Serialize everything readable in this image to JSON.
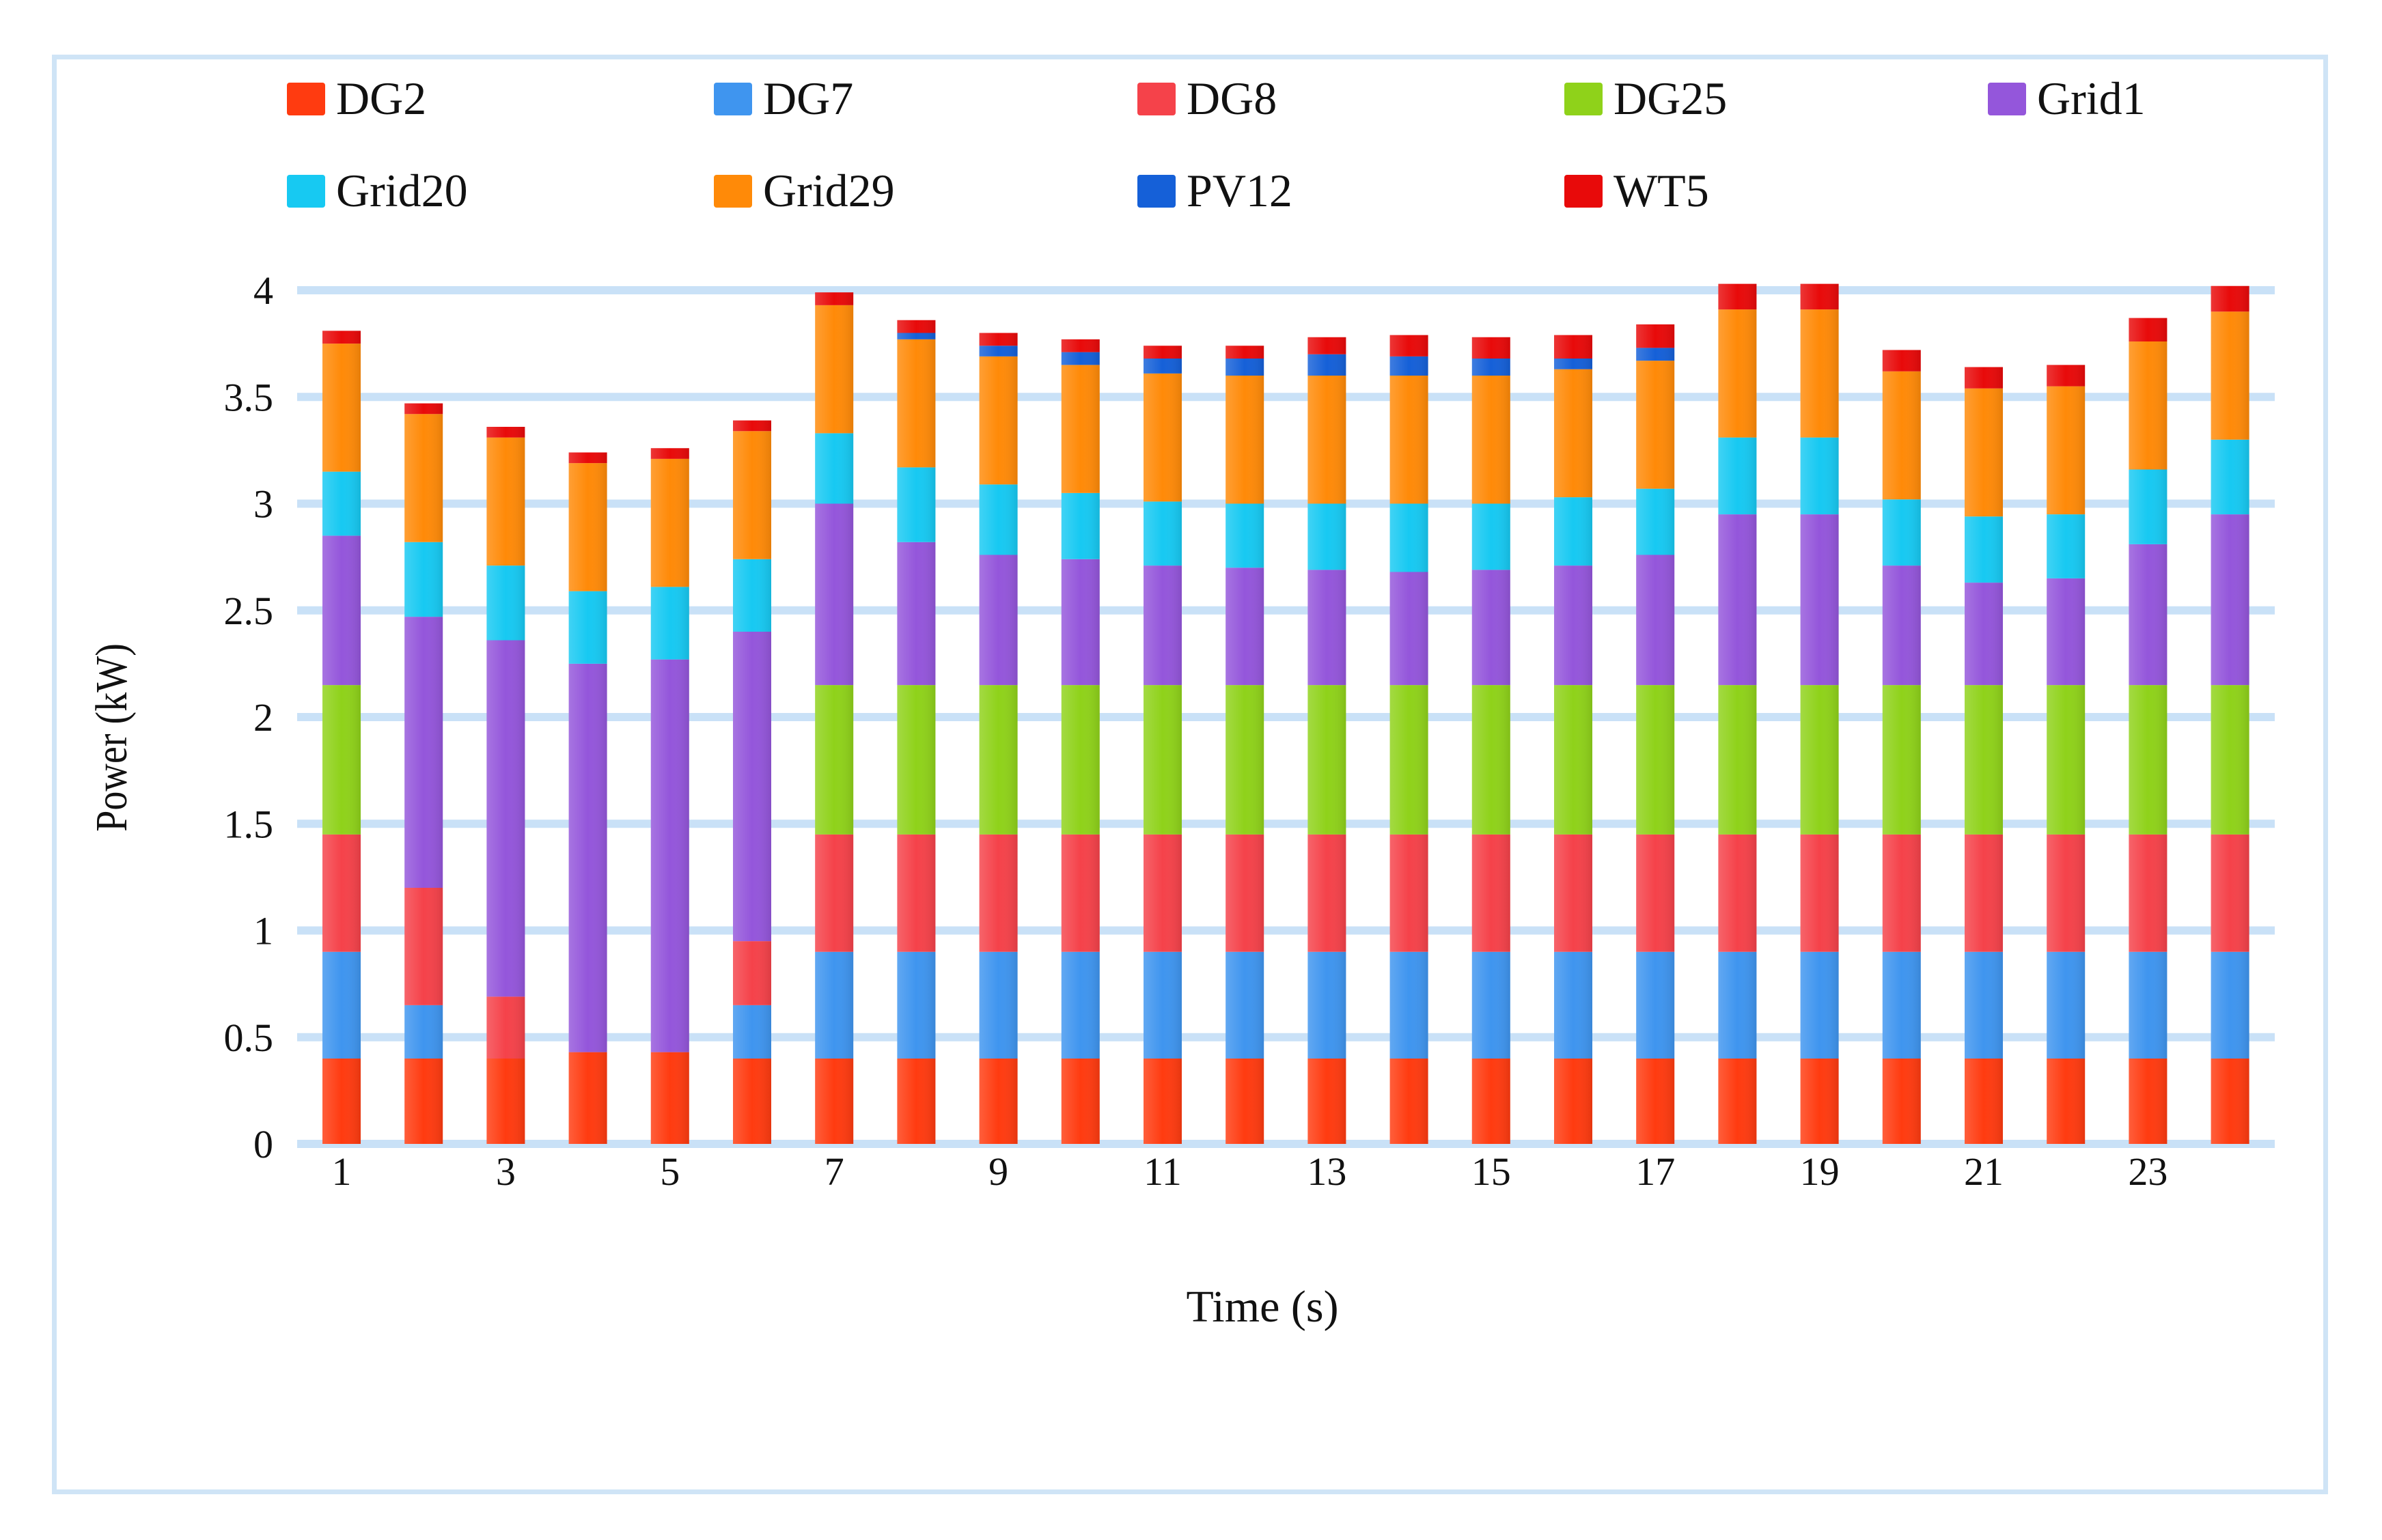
{
  "chart_data": {
    "type": "bar",
    "stacked": true,
    "title": "",
    "xlabel": "Time (s)",
    "ylabel": "Power (kW)",
    "ylim": [
      0,
      4
    ],
    "yticks": [
      0,
      0.5,
      1,
      1.5,
      2,
      2.5,
      3,
      3.5,
      4
    ],
    "ytick_labels": [
      "0",
      "0.5",
      "1",
      "1.5",
      "2",
      "2.5",
      "3",
      "3.5",
      "4"
    ],
    "grid": true,
    "legend_position": "top",
    "categories": [
      "1",
      "2",
      "3",
      "4",
      "5",
      "6",
      "7",
      "8",
      "9",
      "10",
      "11",
      "12",
      "13",
      "14",
      "15",
      "16",
      "17",
      "18",
      "19",
      "20",
      "21",
      "22",
      "23",
      "24"
    ],
    "xtick_labels": [
      "1",
      "",
      "3",
      "",
      "5",
      "",
      "7",
      "",
      "9",
      "",
      "11",
      "",
      "13",
      "",
      "15",
      "",
      "17",
      "",
      "19",
      "",
      "21",
      "",
      "23",
      ""
    ],
    "series": [
      {
        "name": "DG2",
        "color": "#ff3b10",
        "values": [
          0.4,
          0.4,
          0.4,
          0.43,
          0.43,
          0.4,
          0.4,
          0.4,
          0.4,
          0.4,
          0.4,
          0.4,
          0.4,
          0.4,
          0.4,
          0.4,
          0.4,
          0.4,
          0.4,
          0.4,
          0.4,
          0.4,
          0.4,
          0.4
        ]
      },
      {
        "name": "DG7",
        "color": "#3f95ef",
        "values": [
          0.5,
          0.25,
          0,
          0,
          0,
          0.25,
          0.5,
          0.5,
          0.5,
          0.5,
          0.5,
          0.5,
          0.5,
          0.5,
          0.5,
          0.5,
          0.5,
          0.5,
          0.5,
          0.5,
          0.5,
          0.5,
          0.5,
          0.5
        ]
      },
      {
        "name": "DG8",
        "color": "#f5424a",
        "values": [
          0.55,
          0.55,
          0.29,
          0,
          0,
          0.3,
          0.55,
          0.55,
          0.55,
          0.55,
          0.55,
          0.55,
          0.55,
          0.55,
          0.55,
          0.55,
          0.55,
          0.55,
          0.55,
          0.55,
          0.55,
          0.55,
          0.55,
          0.55
        ]
      },
      {
        "name": "DG25",
        "color": "#8fd21a",
        "values": [
          0.7,
          0,
          0,
          0,
          0,
          0,
          0.7,
          0.7,
          0.7,
          0.7,
          0.7,
          0.7,
          0.7,
          0.7,
          0.7,
          0.7,
          0.7,
          0.7,
          0.7,
          0.7,
          0.7,
          0.7,
          0.7,
          0.7
        ]
      },
      {
        "name": "Grid1",
        "color": "#9456db",
        "values": [
          0.7,
          1.27,
          1.67,
          1.82,
          1.84,
          1.45,
          0.85,
          0.67,
          0.61,
          0.59,
          0.56,
          0.55,
          0.54,
          0.53,
          0.54,
          0.56,
          0.61,
          0.8,
          0.8,
          0.56,
          0.48,
          0.5,
          0.66,
          0.8
        ]
      },
      {
        "name": "Grid20",
        "color": "#17c9f2",
        "values": [
          0.3,
          0.35,
          0.35,
          0.34,
          0.34,
          0.34,
          0.33,
          0.35,
          0.33,
          0.31,
          0.3,
          0.3,
          0.31,
          0.32,
          0.31,
          0.32,
          0.31,
          0.36,
          0.36,
          0.31,
          0.31,
          0.3,
          0.35,
          0.35
        ]
      },
      {
        "name": "Grid29",
        "color": "#ff8a08",
        "values": [
          0.6,
          0.6,
          0.6,
          0.6,
          0.6,
          0.6,
          0.6,
          0.6,
          0.6,
          0.6,
          0.6,
          0.6,
          0.6,
          0.6,
          0.6,
          0.6,
          0.6,
          0.6,
          0.6,
          0.6,
          0.6,
          0.6,
          0.6,
          0.6
        ]
      },
      {
        "name": "PV12",
        "color": "#1560d8",
        "values": [
          0,
          0,
          0,
          0,
          0,
          0,
          0,
          0.03,
          0.05,
          0.06,
          0.07,
          0.08,
          0.1,
          0.09,
          0.08,
          0.05,
          0.06,
          0,
          0,
          0,
          0,
          0,
          0,
          0
        ]
      },
      {
        "name": "WT5",
        "color": "#e80a0a",
        "values": [
          0.06,
          0.05,
          0.05,
          0.05,
          0.05,
          0.05,
          0.06,
          0.06,
          0.06,
          0.06,
          0.06,
          0.06,
          0.08,
          0.1,
          0.1,
          0.11,
          0.11,
          0.12,
          0.12,
          0.1,
          0.1,
          0.1,
          0.11,
          0.12
        ]
      }
    ]
  }
}
